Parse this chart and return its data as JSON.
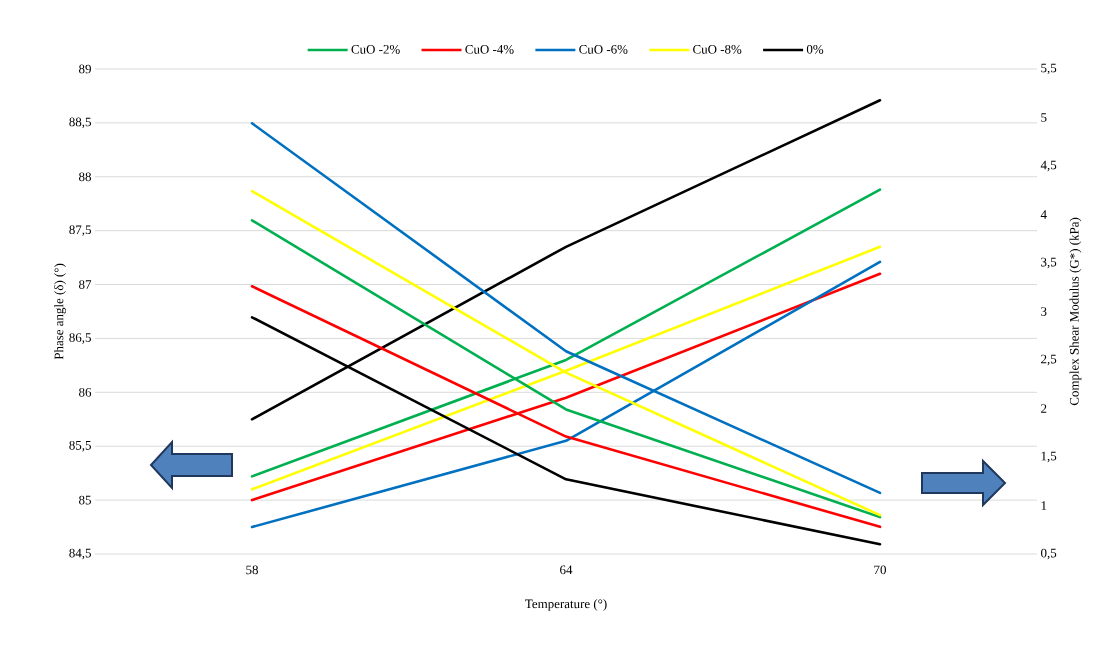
{
  "chart_data": {
    "type": "line",
    "xlabel": "Temperature (°)",
    "ylabel": "Phase angle (δ)  (°)",
    "y2label": "Complex Shear Modulus (G*) (kPa)",
    "categories": [
      "58",
      "64",
      "70"
    ],
    "ylim": [
      84.5,
      89
    ],
    "yticks": [
      {
        "value": 84.5,
        "label": "84,5"
      },
      85,
      {
        "value": 85.5,
        "label": "85,5"
      },
      86,
      {
        "value": 86.5,
        "label": "86,5"
      },
      87,
      {
        "value": 87.5,
        "label": "87,5"
      },
      88,
      {
        "value": 88.5,
        "label": "88,5"
      },
      89
    ],
    "y2lim": [
      0.5,
      5.5
    ],
    "y2ticks": [
      {
        "value": 0.5,
        "label": "0,5"
      },
      1,
      {
        "value": 1.5,
        "label": "1,5"
      },
      2,
      {
        "value": 2.5,
        "label": "2,5"
      },
      3,
      {
        "value": 3.5,
        "label": "3,5"
      },
      4,
      {
        "value": 4.5,
        "label": "4,5"
      },
      5,
      {
        "value": 5.5,
        "label": "5,5"
      }
    ],
    "grid": "y",
    "legend": "top",
    "marker": "none",
    "line_style": "solid",
    "series": [
      {
        "name": "CuO -2%",
        "color": "#00b050",
        "values": [
          85.22,
          86.3,
          87.88
        ]
      },
      {
        "name": "CuO -4%",
        "color": "#ff0000",
        "values": [
          85.0,
          85.95,
          87.1
        ]
      },
      {
        "name": "CuO -6%",
        "color": "#0070c0",
        "values": [
          84.75,
          85.55,
          87.21
        ]
      },
      {
        "name": "CuO -8%",
        "color": "#ffff00",
        "values": [
          85.1,
          86.2,
          87.35
        ]
      },
      {
        "name": "0%",
        "color": "#000000",
        "values": [
          85.75,
          87.35,
          88.71
        ]
      },
      {
        "color": "#00b050",
        "axis": "y2",
        "values": [
          3.94,
          1.99,
          0.88
        ]
      },
      {
        "color": "#ff0000",
        "axis": "y2",
        "values": [
          3.26,
          1.71,
          0.78
        ]
      },
      {
        "color": "#0070c0",
        "axis": "y2",
        "values": [
          4.94,
          2.59,
          1.13
        ]
      },
      {
        "color": "#ffff00",
        "axis": "y2",
        "values": [
          4.24,
          2.37,
          0.9
        ]
      },
      {
        "color": "#000000",
        "axis": "y2",
        "values": [
          2.94,
          1.27,
          0.6
        ]
      }
    ]
  }
}
